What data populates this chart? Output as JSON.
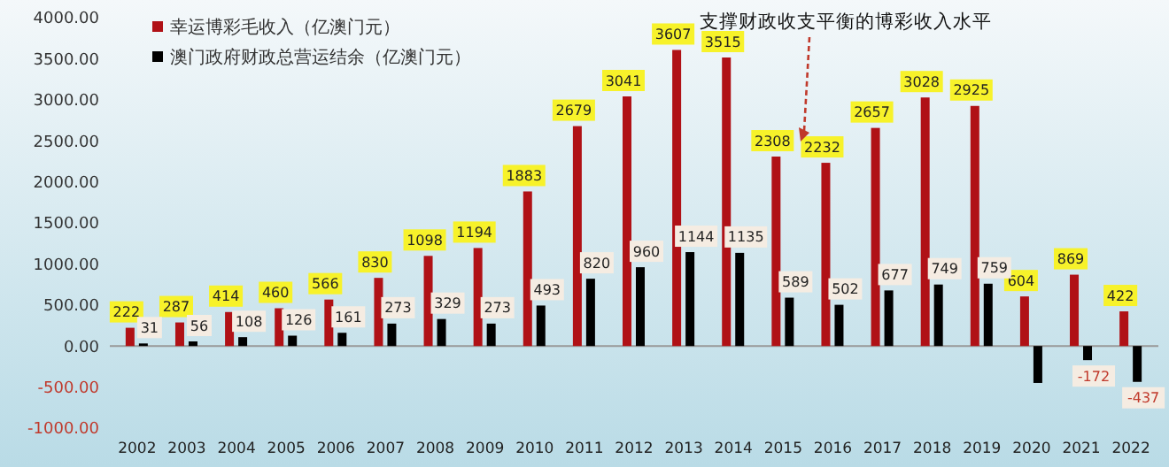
{
  "chart_data": {
    "type": "bar",
    "categories": [
      "2002",
      "2003",
      "2004",
      "2005",
      "2006",
      "2007",
      "2008",
      "2009",
      "2010",
      "2011",
      "2012",
      "2013",
      "2014",
      "2015",
      "2016",
      "2017",
      "2018",
      "2019",
      "2020",
      "2021",
      "2022"
    ],
    "series": [
      {
        "name": "幸运博彩毛收入（亿澳门元）",
        "color": "#b01116",
        "values": [
          222,
          287,
          414,
          460,
          566,
          830,
          1098,
          1194,
          1883,
          2679,
          3041,
          3607,
          3515,
          2308,
          2232,
          2657,
          3028,
          2925,
          604,
          869,
          422
        ],
        "value_labels": [
          "222",
          "287",
          "414",
          "460",
          "566",
          "830",
          "1098",
          "1194",
          "1883",
          "2679",
          "3041",
          "3607",
          "3515",
          "2308",
          "2232",
          "2657",
          "3028",
          "2925",
          "604",
          "869",
          "422"
        ]
      },
      {
        "name": "澳门政府财政总营运结余（亿澳门元）",
        "color": "#000000",
        "values": [
          31,
          56,
          108,
          126,
          161,
          273,
          329,
          273,
          493,
          820,
          960,
          1144,
          1135,
          589,
          502,
          677,
          749,
          759,
          -450,
          -172,
          -437
        ],
        "value_labels": [
          "31",
          "56",
          "108",
          "126",
          "161",
          "273",
          "329",
          "273",
          "493",
          "820",
          "960",
          "1144",
          "1135",
          "589",
          "502",
          "677",
          "749",
          "759",
          null,
          "-172",
          "-437"
        ]
      }
    ],
    "ylim": [
      -1000,
      4000
    ],
    "yticks": [
      {
        "value": -1000,
        "label": "-1000.00"
      },
      {
        "value": -500,
        "label": "-500.00"
      },
      {
        "value": 0,
        "label": "0.00"
      },
      {
        "value": 500,
        "label": "500.00"
      },
      {
        "value": 1000,
        "label": "1000.00"
      },
      {
        "value": 1500,
        "label": "1500.00"
      },
      {
        "value": 2000,
        "label": "2000.00"
      },
      {
        "value": 2500,
        "label": "2500.00"
      },
      {
        "value": 3000,
        "label": "3000.00"
      },
      {
        "value": 3500,
        "label": "3500.00"
      },
      {
        "value": 4000,
        "label": "4000.00"
      }
    ],
    "annotations": [
      "支撑财政收支平衡的博彩收入水平"
    ],
    "legend": "top left"
  }
}
